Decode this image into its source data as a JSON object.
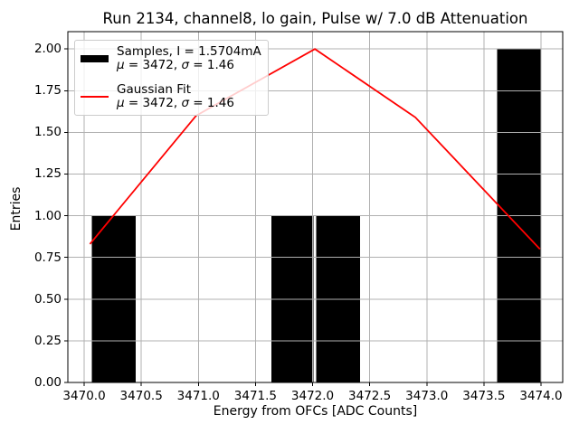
{
  "chart_data": {
    "type": "bar",
    "subtype": "histogram_with_gaussian_fit_line",
    "title": "Run 2134, channel8, lo gain, Pulse w/ 7.0 dB Attenuation",
    "xlabel": "Energy from OFCs [ADC Counts]",
    "ylabel": "Entries",
    "xlim": [
      3469.857,
      3474.19
    ],
    "ylim": [
      0,
      2.104
    ],
    "grid": true,
    "x_ticks": [
      {
        "v": 3470.0,
        "label": "3470.0"
      },
      {
        "v": 3470.5,
        "label": "3470.5"
      },
      {
        "v": 3471.0,
        "label": "3471.0"
      },
      {
        "v": 3471.5,
        "label": "3471.5"
      },
      {
        "v": 3472.0,
        "label": "3472.0"
      },
      {
        "v": 3472.5,
        "label": "3472.5"
      },
      {
        "v": 3473.0,
        "label": "3473.0"
      },
      {
        "v": 3473.5,
        "label": "3473.5"
      },
      {
        "v": 3474.0,
        "label": "3474.0"
      }
    ],
    "y_ticks": [
      {
        "v": 0.0,
        "label": "0.00"
      },
      {
        "v": 0.25,
        "label": "0.25"
      },
      {
        "v": 0.5,
        "label": "0.50"
      },
      {
        "v": 0.75,
        "label": "0.75"
      },
      {
        "v": 1.0,
        "label": "1.00"
      },
      {
        "v": 1.25,
        "label": "1.25"
      },
      {
        "v": 1.5,
        "label": "1.50"
      },
      {
        "v": 1.75,
        "label": "1.75"
      },
      {
        "v": 2.0,
        "label": "2.00"
      }
    ],
    "bars": [
      {
        "x0": 3470.065,
        "x1": 3470.452,
        "count": 1
      },
      {
        "x0": 3471.64,
        "x1": 3472.008,
        "count": 1
      },
      {
        "x0": 3472.032,
        "x1": 3472.416,
        "count": 1
      },
      {
        "x0": 3473.615,
        "x1": 3474.002,
        "count": 2
      }
    ],
    "fit_line": {
      "name": "Gaussian Fit",
      "mu": 3472,
      "sigma": 1.46,
      "points": [
        [
          3470.05,
          0.83
        ],
        [
          3470.98,
          1.6
        ],
        [
          3472.02,
          2.0
        ],
        [
          3472.9,
          1.59
        ],
        [
          3473.99,
          0.8
        ]
      ]
    },
    "legend": {
      "position": "upper left",
      "entries": [
        {
          "label": "Samples, I = 1.5704mA",
          "stats": "μ = 3472, σ = 1.46",
          "swatch": "black-bar"
        },
        {
          "label": "Gaussian Fit",
          "stats": "μ = 3472, σ = 1.46",
          "swatch": "red-line"
        }
      ]
    },
    "colors": {
      "bar": "#000000",
      "fit": "#ff0000",
      "grid": "#b0b0b0",
      "axis": "#000000",
      "legend_border": "#cccccc"
    }
  }
}
